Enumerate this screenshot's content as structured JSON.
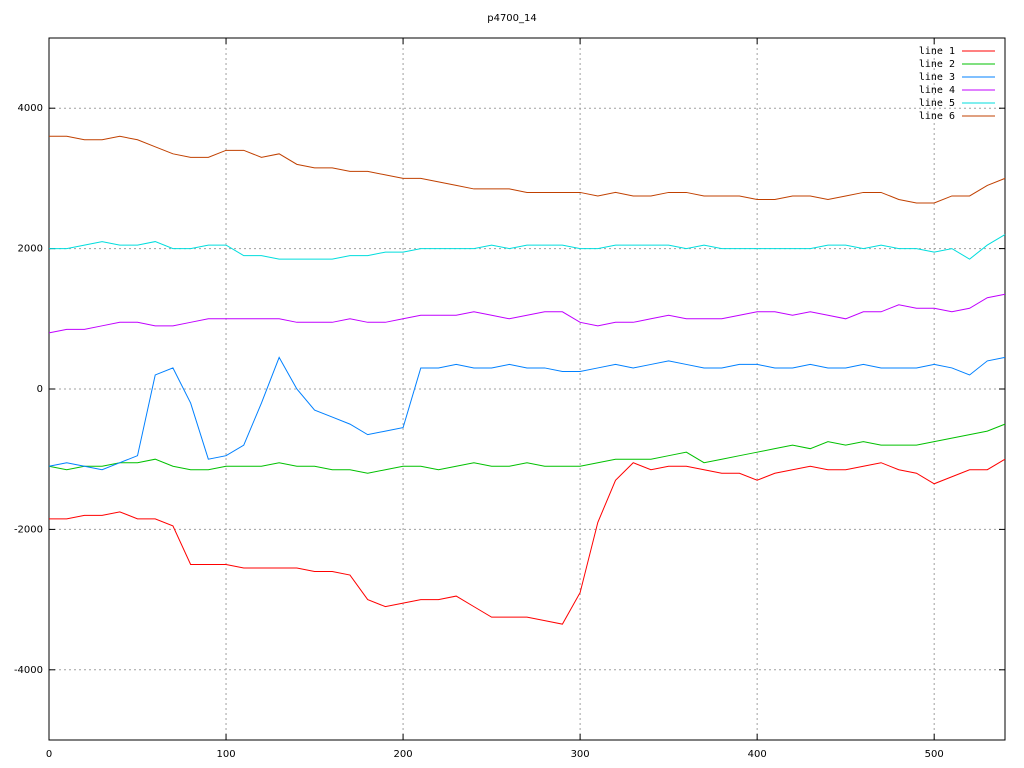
{
  "chart_data": {
    "type": "line",
    "title": "p4700_14",
    "x": [
      0,
      10,
      20,
      30,
      40,
      50,
      60,
      70,
      80,
      90,
      100,
      110,
      120,
      130,
      140,
      150,
      160,
      170,
      180,
      190,
      200,
      210,
      220,
      230,
      240,
      250,
      260,
      270,
      280,
      290,
      300,
      310,
      320,
      330,
      340,
      350,
      360,
      370,
      380,
      390,
      400,
      410,
      420,
      430,
      440,
      450,
      460,
      470,
      480,
      490,
      500,
      510,
      520,
      530,
      540
    ],
    "series": [
      {
        "name": "line 1",
        "color": "#ff0000",
        "values": [
          -1850,
          -1850,
          -1800,
          -1800,
          -1750,
          -1850,
          -1850,
          -1950,
          -2500,
          -2500,
          -2500,
          -2550,
          -2550,
          -2550,
          -2550,
          -2600,
          -2600,
          -2650,
          -3000,
          -3100,
          -3050,
          -3000,
          -3000,
          -2950,
          -3100,
          -3250,
          -3250,
          -3250,
          -3300,
          -3350,
          -2900,
          -1900,
          -1300,
          -1050,
          -1150,
          -1100,
          -1100,
          -1150,
          -1200,
          -1200,
          -1300,
          -1200,
          -1150,
          -1100,
          -1150,
          -1150,
          -1100,
          -1050,
          -1150,
          -1200,
          -1350,
          -1250,
          -1150,
          -1150,
          -1000
        ]
      },
      {
        "name": "line 2",
        "color": "#00c000",
        "values": [
          -1100,
          -1150,
          -1100,
          -1100,
          -1050,
          -1050,
          -1000,
          -1100,
          -1150,
          -1150,
          -1100,
          -1100,
          -1100,
          -1050,
          -1100,
          -1100,
          -1150,
          -1150,
          -1200,
          -1150,
          -1100,
          -1100,
          -1150,
          -1100,
          -1050,
          -1100,
          -1100,
          -1050,
          -1100,
          -1100,
          -1100,
          -1050,
          -1000,
          -1000,
          -1000,
          -950,
          -900,
          -1050,
          -1000,
          -950,
          -900,
          -850,
          -800,
          -850,
          -750,
          -800,
          -750,
          -800,
          -800,
          -800,
          -750,
          -700,
          -650,
          -600,
          -500
        ]
      },
      {
        "name": "line 3",
        "color": "#0080ff",
        "values": [
          -1100,
          -1050,
          -1100,
          -1150,
          -1050,
          -950,
          200,
          300,
          -200,
          -1000,
          -950,
          -800,
          -200,
          450,
          0,
          -300,
          -400,
          -500,
          -650,
          -600,
          -550,
          300,
          300,
          350,
          300,
          300,
          350,
          300,
          300,
          250,
          250,
          300,
          350,
          300,
          350,
          400,
          350,
          300,
          300,
          350,
          350,
          300,
          300,
          350,
          300,
          300,
          350,
          300,
          300,
          300,
          350,
          300,
          200,
          400,
          450
        ]
      },
      {
        "name": "line 4",
        "color": "#c000ff",
        "values": [
          800,
          850,
          850,
          900,
          950,
          950,
          900,
          900,
          950,
          1000,
          1000,
          1000,
          1000,
          1000,
          950,
          950,
          950,
          1000,
          950,
          950,
          1000,
          1050,
          1050,
          1050,
          1100,
          1050,
          1000,
          1050,
          1100,
          1100,
          950,
          900,
          950,
          950,
          1000,
          1050,
          1000,
          1000,
          1000,
          1050,
          1100,
          1100,
          1050,
          1100,
          1050,
          1000,
          1100,
          1100,
          1200,
          1150,
          1150,
          1100,
          1150,
          1300,
          1350
        ]
      },
      {
        "name": "line 5",
        "color": "#00dddd",
        "values": [
          2000,
          2000,
          2050,
          2100,
          2050,
          2050,
          2100,
          2000,
          2000,
          2050,
          2050,
          1900,
          1900,
          1850,
          1850,
          1850,
          1850,
          1900,
          1900,
          1950,
          1950,
          2000,
          2000,
          2000,
          2000,
          2050,
          2000,
          2050,
          2050,
          2050,
          2000,
          2000,
          2050,
          2050,
          2050,
          2050,
          2000,
          2050,
          2000,
          2000,
          2000,
          2000,
          2000,
          2000,
          2050,
          2050,
          2000,
          2050,
          2000,
          2000,
          1950,
          2000,
          1850,
          2050,
          2200
        ]
      },
      {
        "name": "line 6",
        "color": "#c04000",
        "values": [
          3600,
          3600,
          3550,
          3550,
          3600,
          3550,
          3450,
          3350,
          3300,
          3300,
          3400,
          3400,
          3300,
          3350,
          3200,
          3150,
          3150,
          3100,
          3100,
          3050,
          3000,
          3000,
          2950,
          2900,
          2850,
          2850,
          2850,
          2800,
          2800,
          2800,
          2800,
          2750,
          2800,
          2750,
          2750,
          2800,
          2800,
          2750,
          2750,
          2750,
          2700,
          2700,
          2750,
          2750,
          2700,
          2750,
          2800,
          2800,
          2700,
          2650,
          2650,
          2750,
          2750,
          2900,
          3000
        ]
      }
    ],
    "xlim": [
      0,
      540
    ],
    "ylim": [
      -5000,
      5000
    ],
    "xticks": [
      0,
      100,
      200,
      300,
      400,
      500
    ],
    "yticks": [
      -4000,
      -2000,
      0,
      2000,
      4000
    ],
    "grid": true,
    "legend": "top-right"
  }
}
